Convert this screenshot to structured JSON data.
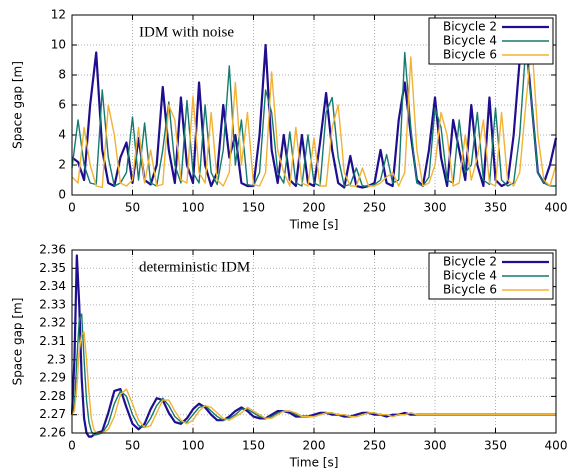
{
  "chart_data": [
    {
      "type": "line",
      "annotation": "IDM with noise",
      "xlabel": "Time [s]",
      "ylabel": "Space gap [m]",
      "x": [
        0,
        5,
        10,
        15,
        20,
        25,
        30,
        35,
        40,
        45,
        50,
        55,
        60,
        65,
        70,
        75,
        80,
        85,
        90,
        95,
        100,
        105,
        110,
        115,
        120,
        125,
        130,
        135,
        140,
        145,
        150,
        155,
        160,
        165,
        170,
        175,
        180,
        185,
        190,
        195,
        200,
        205,
        210,
        215,
        220,
        225,
        230,
        235,
        240,
        245,
        250,
        255,
        260,
        265,
        270,
        275,
        280,
        285,
        290,
        295,
        300,
        305,
        310,
        315,
        320,
        325,
        330,
        335,
        340,
        345,
        350,
        355,
        360,
        365,
        370,
        375,
        380,
        385,
        390,
        395,
        400
      ],
      "series": [
        {
          "name": "Bicycle 2",
          "color": "#1f0f8f",
          "values": [
            2.5,
            2.2,
            1.0,
            6.0,
            9.5,
            3.0,
            0.8,
            0.6,
            2.5,
            3.5,
            0.8,
            3.8,
            1.0,
            0.7,
            2.0,
            7.2,
            3.0,
            0.8,
            6.5,
            2.0,
            0.8,
            7.5,
            2.0,
            0.6,
            1.5,
            6.0,
            2.5,
            4.0,
            0.8,
            0.6,
            0.6,
            4.0,
            10.0,
            3.0,
            0.8,
            4.0,
            1.0,
            0.6,
            4.0,
            0.8,
            0.6,
            3.5,
            6.8,
            3.0,
            0.8,
            0.5,
            2.6,
            0.6,
            0.5,
            0.6,
            0.8,
            3.0,
            0.8,
            0.6,
            5.0,
            7.5,
            4.0,
            1.0,
            0.6,
            3.0,
            6.5,
            2.5,
            0.6,
            5.0,
            3.0,
            1.0,
            6.0,
            2.0,
            0.6,
            6.5,
            1.0,
            0.6,
            0.8,
            4.0,
            9.0,
            10.5,
            6.0,
            1.5,
            0.8,
            2.0,
            3.8
          ]
        },
        {
          "name": "Bicycle 4",
          "color": "#157a6e",
          "values": [
            1.8,
            5.0,
            2.0,
            0.8,
            0.7,
            7.0,
            2.5,
            0.6,
            0.8,
            1.5,
            5.2,
            1.0,
            4.8,
            0.8,
            0.6,
            3.0,
            6.2,
            2.0,
            0.8,
            6.3,
            1.5,
            0.8,
            6.0,
            1.5,
            0.7,
            3.0,
            8.6,
            2.0,
            5.0,
            0.7,
            0.6,
            1.5,
            7.0,
            5.5,
            1.5,
            0.8,
            4.2,
            0.8,
            0.6,
            4.0,
            0.8,
            0.6,
            5.5,
            6.5,
            2.5,
            0.6,
            0.7,
            1.8,
            0.6,
            0.6,
            0.7,
            1.0,
            2.7,
            0.8,
            1.0,
            9.5,
            4.5,
            0.8,
            0.6,
            1.2,
            5.8,
            4.5,
            1.0,
            0.8,
            5.0,
            1.5,
            2.0,
            5.5,
            1.0,
            0.7,
            5.8,
            1.0,
            0.6,
            0.8,
            4.0,
            9.8,
            6.0,
            1.5,
            0.8,
            0.6,
            0.6
          ]
        },
        {
          "name": "Bicycle 6",
          "color": "#f2b233",
          "values": [
            1.2,
            0.8,
            4.5,
            2.0,
            0.6,
            0.5,
            6.0,
            4.0,
            0.8,
            0.6,
            1.0,
            4.5,
            0.8,
            3.0,
            0.6,
            0.7,
            6.0,
            5.0,
            1.0,
            0.8,
            6.6,
            1.5,
            0.8,
            5.5,
            1.0,
            0.6,
            1.5,
            7.5,
            2.0,
            5.5,
            0.7,
            0.6,
            1.5,
            8.2,
            3.0,
            1.5,
            0.6,
            4.5,
            0.8,
            0.6,
            3.8,
            0.6,
            0.6,
            4.5,
            6.0,
            1.5,
            0.6,
            0.6,
            1.8,
            0.6,
            0.6,
            0.8,
            1.2,
            1.5,
            0.6,
            1.5,
            9.2,
            3.0,
            0.6,
            0.8,
            2.0,
            5.5,
            4.0,
            0.6,
            0.8,
            4.0,
            1.0,
            2.5,
            5.0,
            0.8,
            0.6,
            5.5,
            1.0,
            0.6,
            1.5,
            6.0,
            10.2,
            4.0,
            1.0,
            0.6,
            2.0
          ]
        }
      ],
      "xlim": [
        0,
        400
      ],
      "ylim": [
        0,
        12
      ],
      "xticks": [
        0,
        50,
        100,
        150,
        200,
        250,
        300,
        350,
        400
      ],
      "yticks": [
        0,
        2,
        4,
        6,
        8,
        10,
        12
      ],
      "grid": true,
      "legend": "top-right"
    },
    {
      "type": "line",
      "annotation": "deterministic IDM",
      "xlabel": "Time [s]",
      "ylabel": "Space gap [m]",
      "x": [
        0,
        2,
        4,
        6,
        8,
        10,
        12,
        14,
        16,
        18,
        20,
        25,
        30,
        35,
        40,
        45,
        50,
        55,
        60,
        65,
        70,
        75,
        80,
        85,
        90,
        95,
        100,
        105,
        110,
        115,
        120,
        125,
        130,
        135,
        140,
        145,
        150,
        155,
        160,
        165,
        170,
        175,
        180,
        185,
        190,
        195,
        200,
        205,
        210,
        215,
        220,
        225,
        230,
        235,
        240,
        245,
        250,
        255,
        260,
        265,
        270,
        275,
        280,
        285,
        290,
        295,
        300,
        305,
        310,
        315,
        320,
        325,
        330,
        335,
        340,
        345,
        350,
        355,
        360,
        365,
        370,
        375,
        380,
        385,
        390,
        395,
        400
      ],
      "series": [
        {
          "name": "Bicycle 2",
          "color": "#1f0f8f",
          "values": [
            2.27,
            2.3,
            2.357,
            2.33,
            2.29,
            2.268,
            2.26,
            2.258,
            2.258,
            2.259,
            2.26,
            2.261,
            2.271,
            2.283,
            2.284,
            2.274,
            2.265,
            2.262,
            2.265,
            2.273,
            2.279,
            2.278,
            2.271,
            2.266,
            2.265,
            2.268,
            2.273,
            2.276,
            2.274,
            2.27,
            2.267,
            2.267,
            2.269,
            2.272,
            2.274,
            2.272,
            2.269,
            2.268,
            2.268,
            2.27,
            2.272,
            2.272,
            2.271,
            2.269,
            2.269,
            2.269,
            2.27,
            2.271,
            2.271,
            2.27,
            2.27,
            2.269,
            2.269,
            2.27,
            2.271,
            2.271,
            2.27,
            2.27,
            2.269,
            2.27,
            2.27,
            2.271,
            2.27,
            2.27,
            2.27,
            2.27,
            2.27,
            2.27,
            2.27,
            2.27,
            2.27,
            2.27,
            2.27,
            2.27,
            2.27,
            2.27,
            2.27,
            2.27,
            2.27,
            2.27,
            2.27,
            2.27,
            2.27,
            2.27,
            2.27,
            2.27,
            2.27
          ]
        },
        {
          "name": "Bicycle 4",
          "color": "#157a6e",
          "values": [
            2.27,
            2.275,
            2.3,
            2.322,
            2.325,
            2.3,
            2.278,
            2.266,
            2.261,
            2.259,
            2.259,
            2.26,
            2.265,
            2.276,
            2.283,
            2.28,
            2.27,
            2.264,
            2.263,
            2.268,
            2.275,
            2.279,
            2.275,
            2.269,
            2.266,
            2.266,
            2.27,
            2.274,
            2.275,
            2.272,
            2.269,
            2.267,
            2.268,
            2.27,
            2.273,
            2.273,
            2.271,
            2.269,
            2.268,
            2.269,
            2.271,
            2.272,
            2.272,
            2.27,
            2.269,
            2.269,
            2.269,
            2.27,
            2.271,
            2.271,
            2.27,
            2.27,
            2.269,
            2.269,
            2.27,
            2.271,
            2.271,
            2.27,
            2.27,
            2.269,
            2.27,
            2.27,
            2.271,
            2.27,
            2.27,
            2.27,
            2.27,
            2.27,
            2.27,
            2.27,
            2.27,
            2.27,
            2.27,
            2.27,
            2.27,
            2.27,
            2.27,
            2.27,
            2.27,
            2.27,
            2.27,
            2.27,
            2.27,
            2.27,
            2.27,
            2.27,
            2.27
          ]
        },
        {
          "name": "Bicycle 6",
          "color": "#f2b233",
          "values": [
            2.27,
            2.272,
            2.285,
            2.305,
            2.314,
            2.315,
            2.3,
            2.282,
            2.268,
            2.262,
            2.26,
            2.26,
            2.262,
            2.269,
            2.281,
            2.284,
            2.276,
            2.267,
            2.263,
            2.264,
            2.271,
            2.278,
            2.278,
            2.272,
            2.267,
            2.265,
            2.267,
            2.272,
            2.275,
            2.274,
            2.271,
            2.268,
            2.267,
            2.269,
            2.271,
            2.274,
            2.272,
            2.27,
            2.268,
            2.268,
            2.27,
            2.272,
            2.272,
            2.271,
            2.269,
            2.269,
            2.269,
            2.27,
            2.271,
            2.271,
            2.27,
            2.27,
            2.269,
            2.269,
            2.27,
            2.271,
            2.271,
            2.27,
            2.27,
            2.269,
            2.27,
            2.27,
            2.271,
            2.27,
            2.27,
            2.27,
            2.27,
            2.27,
            2.27,
            2.27,
            2.27,
            2.27,
            2.27,
            2.27,
            2.27,
            2.27,
            2.27,
            2.27,
            2.27,
            2.27,
            2.27,
            2.27,
            2.27,
            2.27,
            2.27,
            2.27,
            2.27
          ]
        }
      ],
      "xlim": [
        0,
        400
      ],
      "ylim": [
        2.26,
        2.36
      ],
      "xticks": [
        0,
        50,
        100,
        150,
        200,
        250,
        300,
        350,
        400
      ],
      "yticks": [
        2.26,
        2.27,
        2.28,
        2.29,
        2.3,
        2.31,
        2.32,
        2.33,
        2.34,
        2.35,
        2.36
      ],
      "grid": true,
      "legend": "top-right"
    }
  ]
}
